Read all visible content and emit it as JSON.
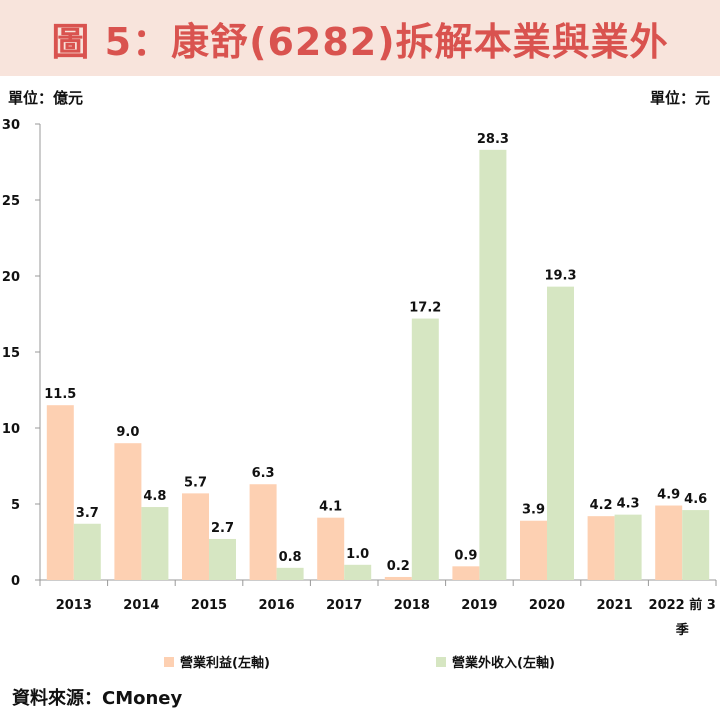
{
  "title": "圖 5：康舒(6282)拆解本業與業外",
  "unit_left": "單位：億元",
  "unit_right": "單位：元",
  "source": "資料來源：CMoney",
  "colors": {
    "series1": "#fdd0b2",
    "series2": "#d6e6c2",
    "title_bg": "#f8e4dc",
    "title_fg": "#d9534f"
  },
  "chart_data": {
    "type": "bar",
    "categories": [
      "2013",
      "2014",
      "2015",
      "2016",
      "2017",
      "2018",
      "2019",
      "2020",
      "2021",
      "2022 前 3 季"
    ],
    "series": [
      {
        "name": "營業利益(左軸)",
        "values": [
          11.5,
          9.0,
          5.7,
          6.3,
          4.1,
          0.2,
          0.9,
          3.9,
          4.2,
          4.9
        ]
      },
      {
        "name": "營業外收入(左軸)",
        "values": [
          3.7,
          4.8,
          2.7,
          0.8,
          1.0,
          17.2,
          28.3,
          19.3,
          4.3,
          4.6
        ]
      }
    ],
    "value_labels": [
      [
        "11.5",
        "9.0",
        "5.7",
        "6.3",
        "4.1",
        "0.2",
        "0.9",
        "3.9",
        "4.2",
        "4.9"
      ],
      [
        "3.7",
        "4.8",
        "2.7",
        "0.8",
        "1.0",
        "17.2",
        "28.3",
        "19.3",
        "4.3",
        "4.6"
      ]
    ],
    "ylim": [
      0,
      30
    ],
    "yticks": [
      0,
      5,
      10,
      15,
      20,
      25,
      30
    ],
    "xlabel": "",
    "ylabel": "",
    "legend_position": "bottom",
    "grid": false
  }
}
